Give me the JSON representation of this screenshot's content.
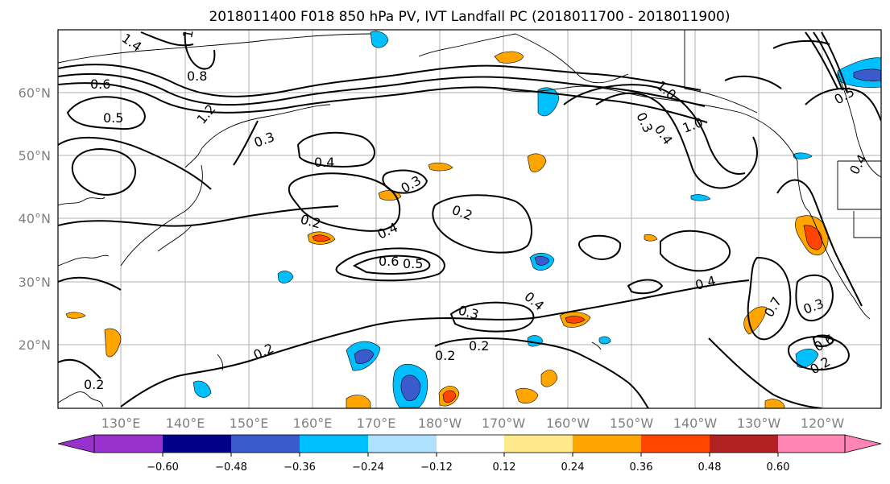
{
  "title": "2018011400 F018 850 hPa PV, IVT Landfall PC (2018011700 - 2018011900)",
  "map": {
    "lon_range": [
      120,
      245
    ],
    "lat_range": [
      10,
      70
    ],
    "lat_labels": [
      "20°N",
      "30°N",
      "40°N",
      "50°N",
      "60°N"
    ],
    "lon_labels": [
      "130°E",
      "140°E",
      "150°E",
      "160°E",
      "170°E",
      "180°W",
      "170°W",
      "160°W",
      "150°W",
      "140°W",
      "130°W",
      "120°W"
    ],
    "gridlines": true,
    "contour_labels": [
      "1.4",
      "0.8",
      "0.6",
      "1.0",
      "1.2",
      "0.5",
      "0.3",
      "0.4",
      "0.2",
      "0.6",
      "0.5",
      "0.2",
      "0.3",
      "0.4",
      "0.2",
      "0.3",
      "0.2",
      "0.2",
      "1.0",
      "0.3",
      "0.4",
      "1.0",
      "0.4",
      "0.3",
      "0.6",
      "0.2",
      "0.5",
      "0.4",
      "0.4",
      "0.7",
      "0.2"
    ]
  },
  "colorbar": {
    "ticks": [
      "−0.60",
      "−0.48",
      "−0.36",
      "−0.24",
      "−0.12",
      "0.12",
      "0.24",
      "0.36",
      "0.48",
      "0.60"
    ],
    "colors": [
      "#9932CC",
      "#00008B",
      "#3A5BCC",
      "#00BFFF",
      "#B0E0FF",
      "#FFFFFF",
      "#FFE98A",
      "#FFA500",
      "#FF4500",
      "#B22222",
      "#FF85B4"
    ]
  }
}
